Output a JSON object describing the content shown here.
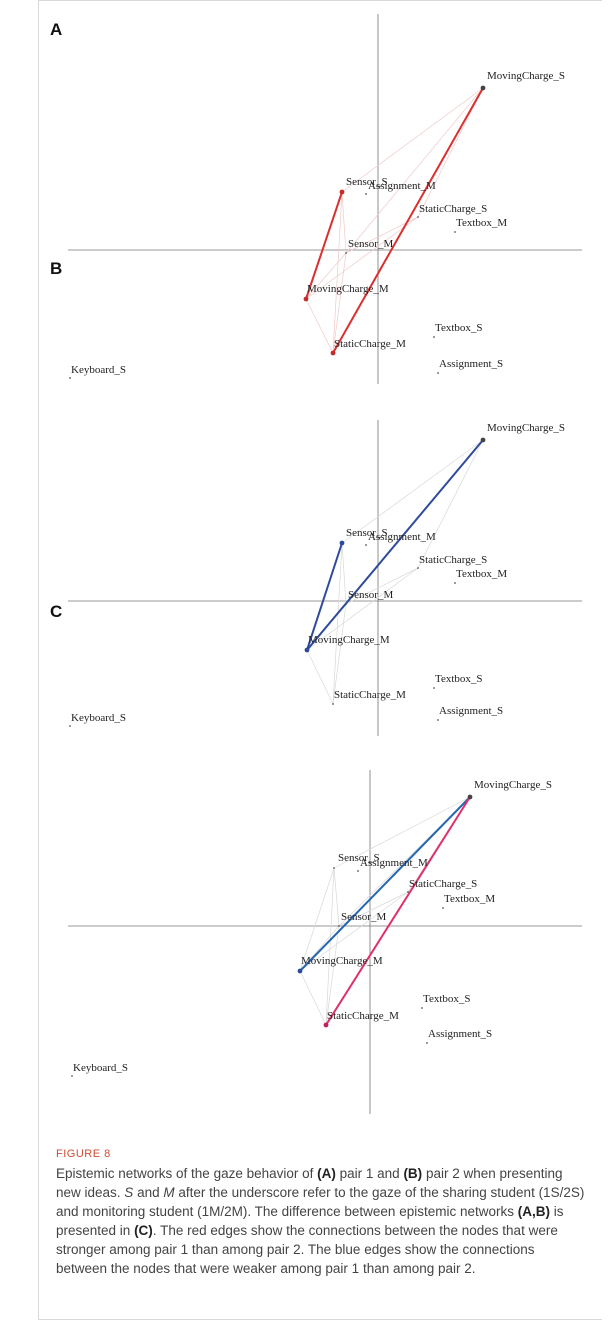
{
  "panels": [
    {
      "letter": "A",
      "nodes": [
        {
          "id": "MovingCharge_S",
          "label": "MovingCharge_S"
        },
        {
          "id": "Sensor_S",
          "label": "Sensor_S"
        },
        {
          "id": "Assignment_M",
          "label": "Assignment_M"
        },
        {
          "id": "StaticCharge_S",
          "label": "StaticCharge_S"
        },
        {
          "id": "Textbox_M",
          "label": "Textbox_M"
        },
        {
          "id": "Sensor_M",
          "label": "Sensor_M"
        },
        {
          "id": "MovingCharge_M",
          "label": "MovingCharge_M"
        },
        {
          "id": "Textbox_S",
          "label": "Textbox_S"
        },
        {
          "id": "StaticCharge_M",
          "label": "StaticCharge_M"
        },
        {
          "id": "Assignment_S",
          "label": "Assignment_S"
        },
        {
          "id": "Keyboard_S",
          "label": "Keyboard_S"
        }
      ],
      "strong_edges": [
        [
          "MovingCharge_S",
          "StaticCharge_M"
        ],
        [
          "Sensor_S",
          "MovingCharge_M"
        ]
      ],
      "edge_color": "#d93030"
    },
    {
      "letter": "B",
      "nodes": [
        {
          "id": "MovingCharge_S",
          "label": "MovingCharge_S"
        },
        {
          "id": "Sensor_S",
          "label": "Sensor_S"
        },
        {
          "id": "Assignment_M",
          "label": "Assignment_M"
        },
        {
          "id": "StaticCharge_S",
          "label": "StaticCharge_S"
        },
        {
          "id": "Textbox_M",
          "label": "Textbox_M"
        },
        {
          "id": "Sensor_M",
          "label": "Sensor_M"
        },
        {
          "id": "MovingCharge_M",
          "label": "MovingCharge_M"
        },
        {
          "id": "Textbox_S",
          "label": "Textbox_S"
        },
        {
          "id": "StaticCharge_M",
          "label": "StaticCharge_M"
        },
        {
          "id": "Assignment_S",
          "label": "Assignment_S"
        },
        {
          "id": "Keyboard_S",
          "label": "Keyboard_S"
        }
      ],
      "strong_edges": [
        [
          "MovingCharge_S",
          "MovingCharge_M"
        ],
        [
          "Sensor_S",
          "MovingCharge_M"
        ]
      ],
      "edge_color": "#2e4b9b"
    },
    {
      "letter": "C",
      "nodes": [
        {
          "id": "MovingCharge_S",
          "label": "MovingCharge_S"
        },
        {
          "id": "Sensor_S",
          "label": "Sensor_S"
        },
        {
          "id": "Assignment_M",
          "label": "Assignment_M"
        },
        {
          "id": "StaticCharge_S",
          "label": "StaticCharge_S"
        },
        {
          "id": "Textbox_M",
          "label": "Textbox_M"
        },
        {
          "id": "Sensor_M",
          "label": "Sensor_M"
        },
        {
          "id": "MovingCharge_M",
          "label": "MovingCharge_M"
        },
        {
          "id": "Textbox_S",
          "label": "Textbox_S"
        },
        {
          "id": "StaticCharge_M",
          "label": "StaticCharge_M"
        },
        {
          "id": "Assignment_S",
          "label": "Assignment_S"
        },
        {
          "id": "Keyboard_S",
          "label": "Keyboard_S"
        }
      ],
      "strong_edges": [
        [
          "MovingCharge_S",
          "MovingCharge_M"
        ],
        [
          "MovingCharge_S",
          "StaticCharge_M"
        ]
      ],
      "edge_colors": {
        "MovingCharge_S|MovingCharge_M": "#2667b0",
        "MovingCharge_S|StaticCharge_M": "#e0306a"
      }
    }
  ],
  "caption": {
    "figure_label": "FIGURE 8",
    "parts": [
      {
        "t": "Epistemic networks of the gaze behavior of ",
        "s": "n"
      },
      {
        "t": "(A)",
        "s": "b"
      },
      {
        "t": " pair 1 and ",
        "s": "n"
      },
      {
        "t": "(B)",
        "s": "b"
      },
      {
        "t": " pair 2 when presenting new ideas. ",
        "s": "n"
      },
      {
        "t": "S",
        "s": "i"
      },
      {
        "t": " and ",
        "s": "n"
      },
      {
        "t": "M",
        "s": "i"
      },
      {
        "t": " after the underscore refer to the gaze of the sharing student (1S/2S) and monitoring student (1M/2M). The difference between epistemic networks ",
        "s": "n"
      },
      {
        "t": "(A,B)",
        "s": "b"
      },
      {
        "t": " is presented in ",
        "s": "n"
      },
      {
        "t": "(C)",
        "s": "b"
      },
      {
        "t": ". The red edges show the connections between the nodes that were stronger among pair 1 than among pair 2. The blue edges show the connections between the nodes that were weaker among pair 1 than among pair 2.",
        "s": "n"
      }
    ]
  }
}
